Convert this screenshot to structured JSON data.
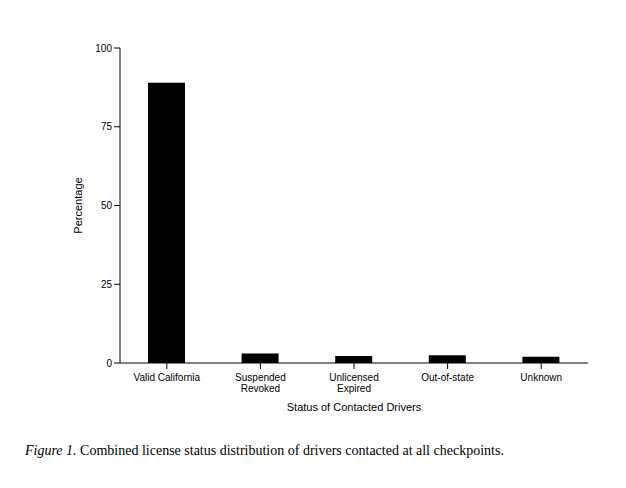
{
  "chart_data": {
    "type": "bar",
    "categories": [
      "Valid California",
      "Suspended\nRevoked",
      "Unlicensed\nExpired",
      "Out-of-state",
      "Unknown"
    ],
    "values": [
      89,
      3,
      2.2,
      2.5,
      2
    ],
    "color": "#000000",
    "ylim": [
      0,
      100
    ],
    "yticks": [
      0,
      25,
      50,
      75,
      100
    ],
    "grid": false,
    "y_label": "Percentage",
    "x_label": "Status of Contacted Drivers",
    "figure_label": "Figure 1.",
    "caption": "Combined license status distribution of drivers contacted at all checkpoints."
  }
}
